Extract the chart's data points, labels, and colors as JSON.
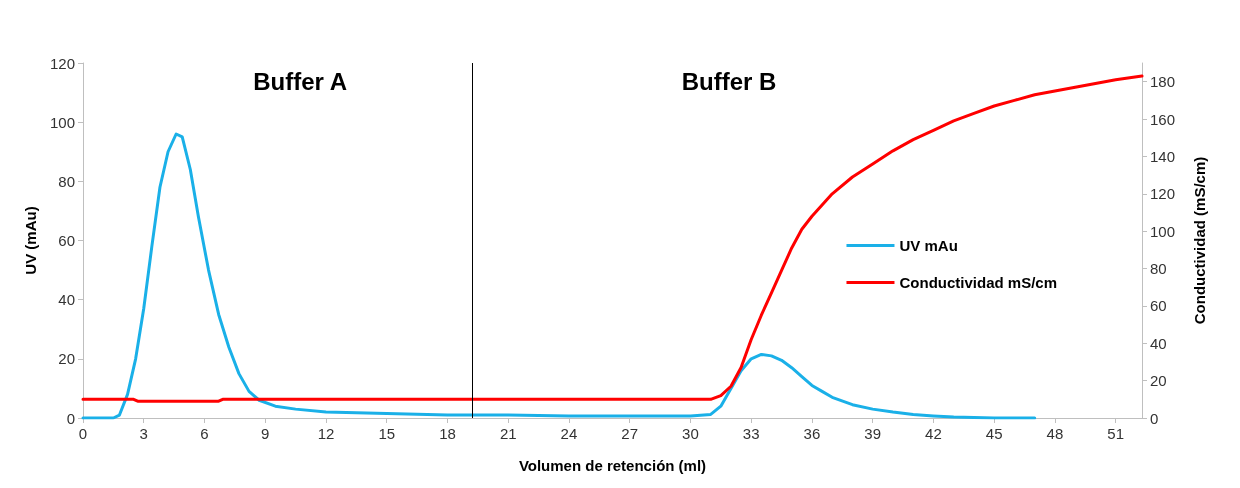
{
  "chart_data": {
    "type": "line",
    "xlabel": "Volumen de retención (ml)",
    "ylabel": "UV (mAu)",
    "y2label": "Conductividad (mS/cm)",
    "xlim": [
      0,
      52.3
    ],
    "xticks": [
      0,
      3,
      6,
      9,
      12,
      15,
      18,
      21,
      24,
      27,
      30,
      33,
      36,
      39,
      42,
      45,
      48,
      51
    ],
    "ylim": [
      0,
      120
    ],
    "yticks": [
      0,
      20,
      40,
      60,
      80,
      100,
      120
    ],
    "y2lim": [
      0,
      190
    ],
    "y2ticks": [
      0,
      20,
      40,
      60,
      80,
      100,
      120,
      140,
      160,
      180
    ],
    "grid": false,
    "legend": "right",
    "marker": "none",
    "line_style": "solid",
    "annotations": [
      "Buffer A",
      "Buffer B"
    ],
    "ref_lines": [
      {
        "axis": "x",
        "value": 19.2,
        "color": "#000000"
      }
    ],
    "series": [
      {
        "name": "UV mAu",
        "color": "#1ab0e8",
        "x": [
          0,
          1.5,
          1.8,
          2.2,
          2.6,
          3,
          3.4,
          3.8,
          4.2,
          4.6,
          4.9,
          5.3,
          5.7,
          6.2,
          6.7,
          7.2,
          7.7,
          8.2,
          8.7,
          9.5,
          10.5,
          12,
          15,
          18,
          21,
          24,
          27,
          30,
          31,
          31.5,
          32,
          32.5,
          33,
          33.5,
          34,
          34.5,
          35,
          35.5,
          36,
          36.5,
          37,
          38,
          39,
          40,
          41,
          42,
          43,
          45,
          47
        ],
        "values": [
          0,
          0,
          1,
          8,
          20,
          37,
          58,
          78,
          90,
          96,
          95,
          84,
          68,
          50,
          35,
          24,
          15,
          9,
          6,
          4,
          3,
          2,
          1.5,
          1,
          1,
          0.7,
          0.7,
          0.7,
          1.2,
          4,
          10,
          16,
          20,
          21.5,
          21,
          19.5,
          17,
          14,
          11,
          9,
          7,
          4.5,
          3,
          2,
          1.2,
          0.7,
          0.3,
          0,
          0
        ]
      },
      {
        "name": "Conductividad mS/cm",
        "color": "#ff0000",
        "axis": "y2",
        "x": [
          0,
          2.5,
          2.7,
          6.7,
          6.9,
          31,
          31.5,
          32,
          32.5,
          33,
          33.5,
          34,
          34.5,
          35,
          35.5,
          36,
          37,
          38,
          39,
          40,
          41,
          42,
          43,
          44,
          45,
          46,
          47,
          48,
          49,
          50,
          51,
          52.3
        ],
        "values": [
          10,
          10,
          9,
          9,
          10,
          10,
          12,
          17,
          27,
          42,
          55,
          67,
          79,
          91,
          101,
          108,
          120,
          129,
          136,
          143,
          149,
          154,
          159,
          163,
          167,
          170,
          173,
          175,
          177,
          179,
          181,
          183
        ]
      }
    ]
  }
}
